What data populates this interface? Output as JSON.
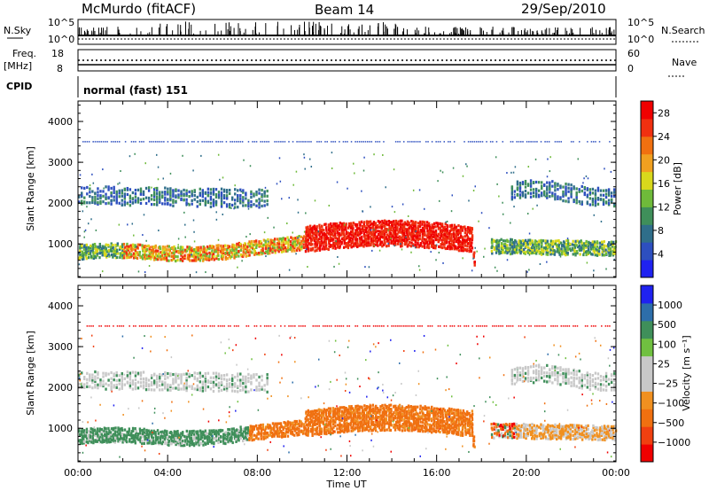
{
  "header": {
    "station": "McMurdo (fitACF)",
    "beam": "Beam 14",
    "date": "29/Sep/2010"
  },
  "top_panels": {
    "nsky_label": "N.Sky",
    "nsky_ticks": [
      "10^5",
      "10^0"
    ],
    "nsearch_label": "N.Search",
    "nsearch_ticks": [
      "10^5",
      "10^0"
    ],
    "freq_label": "Freq.",
    "freq_unit": "[MHz]",
    "freq_ticks": [
      "18",
      "8"
    ],
    "nave_label": "Nave",
    "nave_ticks": [
      "60",
      "0"
    ],
    "cpid_label": "CPID",
    "cpid_value": "normal (fast) 151"
  },
  "colors": {
    "power": [
      "#1f22f0",
      "#2d4fbf",
      "#2f6e8a",
      "#3f8f5a",
      "#6fba3a",
      "#d8d81c",
      "#f0a020",
      "#f07010",
      "#f03010",
      "#f00000"
    ],
    "velocity": [
      "#f00000",
      "#f04010",
      "#f07010",
      "#f09020",
      "#c8c8c8",
      "#c8c8c8",
      "#70c040",
      "#3f8f5a",
      "#2d6eaa",
      "#1f22f0"
    ]
  },
  "chart_data": [
    {
      "type": "heatmap",
      "name": "Power",
      "ylabel": "Slant Range [km]",
      "ylim": [
        180,
        4500
      ],
      "y_ticks": [
        "4000",
        "3000",
        "2000",
        "1000"
      ],
      "colorbar_label": "Power [dB]",
      "colorbar_ticks": [
        "28",
        "24",
        "20",
        "16",
        "12",
        "8",
        "4"
      ],
      "colorbar_range": [
        0,
        30
      ]
    },
    {
      "type": "heatmap",
      "name": "Velocity",
      "ylabel": "Slant Range [km]",
      "xlabel": "Time UT",
      "ylim": [
        180,
        4500
      ],
      "y_ticks": [
        "4000",
        "3000",
        "2000",
        "1000"
      ],
      "x_ticks": [
        "00:00",
        "04:00",
        "08:00",
        "12:00",
        "16:00",
        "20:00",
        "00:00"
      ],
      "x_range_hours": [
        0,
        24
      ],
      "colorbar_label": "Velocity [m s⁻¹]",
      "colorbar_ticks": [
        "1000",
        "500",
        "100",
        "25",
        "−25",
        "−100",
        "−500",
        "−1000"
      ]
    }
  ]
}
